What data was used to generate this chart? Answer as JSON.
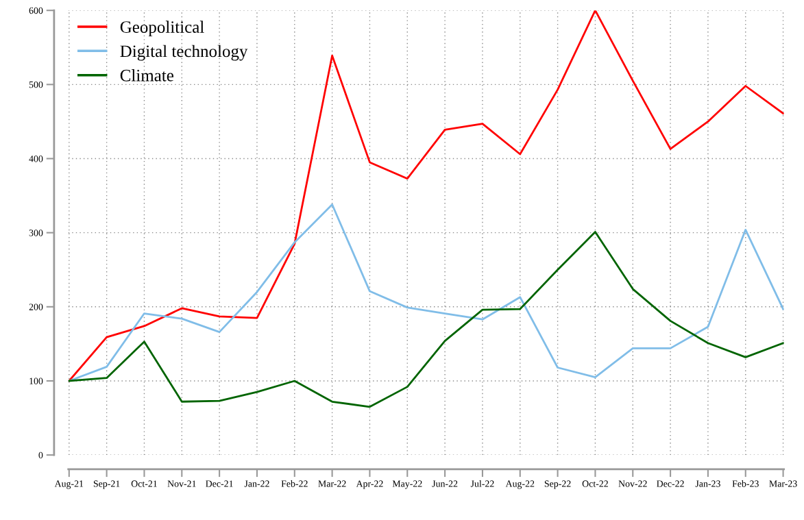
{
  "chart_data": {
    "type": "line",
    "categories": [
      "Aug-21",
      "Sep-21",
      "Oct-21",
      "Nov-21",
      "Dec-21",
      "Jan-22",
      "Feb-22",
      "Mar-22",
      "Apr-22",
      "May-22",
      "Jun-22",
      "Jul-22",
      "Aug-22",
      "Sep-22",
      "Oct-22",
      "Nov-22",
      "Dec-22",
      "Jan-23",
      "Feb-23",
      "Mar-23"
    ],
    "series": [
      {
        "name": "Geopolitical",
        "color": "#ff0000",
        "values": [
          100,
          159,
          174,
          198,
          187,
          185,
          285,
          539,
          395,
          373,
          439,
          447,
          406,
          493,
          600,
          505,
          413,
          450,
          498,
          461
        ]
      },
      {
        "name": "Digital technology",
        "color": "#80bde8",
        "values": [
          100,
          119,
          191,
          184,
          166,
          220,
          287,
          338,
          221,
          199,
          191,
          183,
          213,
          118,
          105,
          144,
          144,
          173,
          304,
          197
        ]
      },
      {
        "name": "Climate",
        "color": "#006400",
        "values": [
          100,
          104,
          153,
          72,
          73,
          85,
          100,
          72,
          65,
          92,
          154,
          196,
          197,
          250,
          301,
          224,
          181,
          151,
          132,
          151
        ]
      }
    ],
    "ylim": [
      0,
      600
    ],
    "yticks": [
      0,
      100,
      200,
      300,
      400,
      500,
      600
    ],
    "grid": true,
    "legend": "top left",
    "marker": "none",
    "line_style": "solid"
  }
}
